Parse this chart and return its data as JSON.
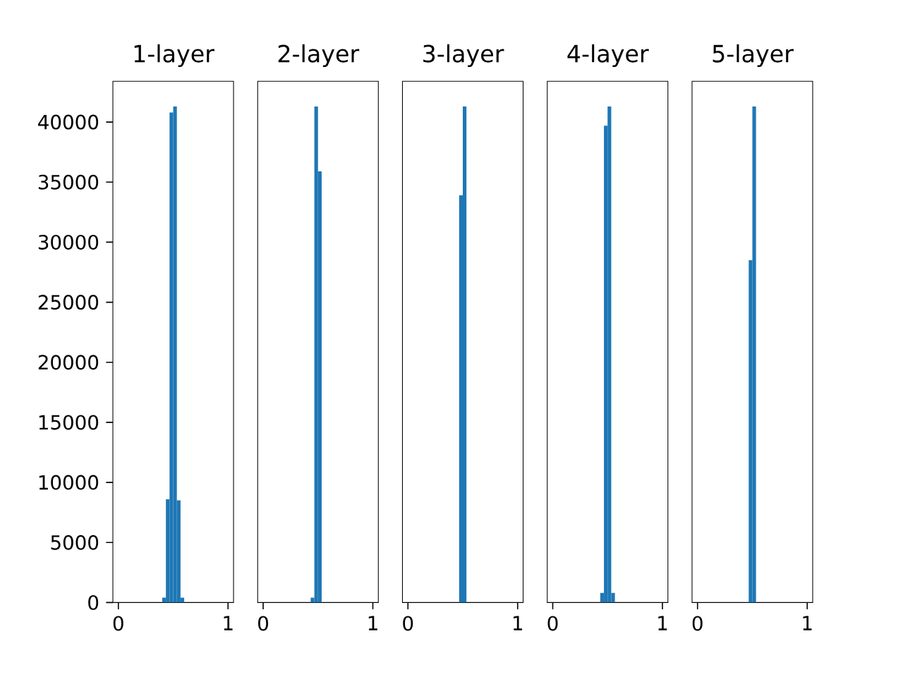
{
  "chart_data": [
    {
      "type": "histogram",
      "title": "1-layer",
      "color": "#1f77b4",
      "bins": [
        0,
        0.0333,
        0.0667,
        0.1,
        0.1333,
        0.1667,
        0.2,
        0.2333,
        0.2667,
        0.3,
        0.3333,
        0.3667,
        0.4,
        0.4333,
        0.4667,
        0.5,
        0.5333,
        0.5667,
        0.6,
        0.6333,
        0.6667,
        0.7,
        0.7333,
        0.7667,
        0.8,
        0.8333,
        0.8667,
        0.9,
        0.9333,
        0.9667,
        1
      ],
      "values": [
        0,
        0,
        0,
        0,
        0,
        0,
        0,
        0,
        0,
        0,
        0,
        0,
        400,
        8600,
        40800,
        41300,
        8500,
        400,
        0,
        0,
        0,
        0,
        0,
        0,
        0,
        0,
        0,
        0,
        0,
        0
      ],
      "xlim": [
        -0.05,
        1.05
      ],
      "xticks": [
        0,
        1
      ],
      "ylim": [
        0,
        43400
      ],
      "yticks": [
        0,
        5000,
        10000,
        15000,
        20000,
        25000,
        30000,
        35000,
        40000
      ]
    },
    {
      "type": "histogram",
      "title": "2-layer",
      "color": "#1f77b4",
      "tick_labels": "x",
      "bins": [
        0,
        0.0333,
        0.0667,
        0.1,
        0.1333,
        0.1667,
        0.2,
        0.2333,
        0.2667,
        0.3,
        0.3333,
        0.3667,
        0.4,
        0.4333,
        0.4667,
        0.5,
        0.5333,
        0.5667,
        0.6,
        0.6333,
        0.6667,
        0.7,
        0.7333,
        0.7667,
        0.8,
        0.8333,
        0.8667,
        0.9,
        0.9333,
        0.9667,
        1
      ],
      "values": [
        0,
        0,
        0,
        0,
        0,
        0,
        0,
        0,
        0,
        0,
        0,
        0,
        0,
        400,
        41300,
        35900,
        0,
        0,
        0,
        0,
        0,
        0,
        0,
        0,
        0,
        0,
        0,
        0,
        0,
        0
      ],
      "xlim": [
        -0.05,
        1.05
      ],
      "xticks": [
        0,
        1
      ],
      "ylim": [
        0,
        43400
      ],
      "yticks": [
        0,
        5000,
        10000,
        15000,
        20000,
        25000,
        30000,
        35000,
        40000
      ]
    },
    {
      "type": "histogram",
      "title": "3-layer",
      "color": "#1f77b4",
      "tick_labels": "x",
      "bins": [
        0,
        0.0333,
        0.0667,
        0.1,
        0.1333,
        0.1667,
        0.2,
        0.2333,
        0.2667,
        0.3,
        0.3333,
        0.3667,
        0.4,
        0.4333,
        0.4667,
        0.5,
        0.5333,
        0.5667,
        0.6,
        0.6333,
        0.6667,
        0.7,
        0.7333,
        0.7667,
        0.8,
        0.8333,
        0.8667,
        0.9,
        0.9333,
        0.9667,
        1
      ],
      "values": [
        0,
        0,
        0,
        0,
        0,
        0,
        0,
        0,
        0,
        0,
        0,
        0,
        0,
        0,
        33900,
        41300,
        0,
        0,
        0,
        0,
        0,
        0,
        0,
        0,
        0,
        0,
        0,
        0,
        0,
        0
      ],
      "xlim": [
        -0.05,
        1.05
      ],
      "xticks": [
        0,
        1
      ],
      "ylim": [
        0,
        43400
      ],
      "yticks": [
        0,
        5000,
        10000,
        15000,
        20000,
        25000,
        30000,
        35000,
        40000
      ]
    },
    {
      "type": "histogram",
      "title": "4-layer",
      "color": "#1f77b4",
      "tick_labels": "x",
      "bins": [
        0,
        0.0333,
        0.0667,
        0.1,
        0.1333,
        0.1667,
        0.2,
        0.2333,
        0.2667,
        0.3,
        0.3333,
        0.3667,
        0.4,
        0.4333,
        0.4667,
        0.5,
        0.5333,
        0.5667,
        0.6,
        0.6333,
        0.6667,
        0.7,
        0.7333,
        0.7667,
        0.8,
        0.8333,
        0.8667,
        0.9,
        0.9333,
        0.9667,
        1
      ],
      "values": [
        0,
        0,
        0,
        0,
        0,
        0,
        0,
        0,
        0,
        0,
        0,
        0,
        0,
        800,
        39700,
        41300,
        800,
        0,
        0,
        0,
        0,
        0,
        0,
        0,
        0,
        0,
        0,
        0,
        0,
        0
      ],
      "xlim": [
        -0.05,
        1.05
      ],
      "xticks": [
        0,
        1
      ],
      "ylim": [
        0,
        43400
      ],
      "yticks": [
        0,
        5000,
        10000,
        15000,
        20000,
        25000,
        30000,
        35000,
        40000
      ]
    },
    {
      "type": "histogram",
      "title": "5-layer",
      "color": "#1f77b4",
      "tick_labels": "x",
      "bins": [
        0,
        0.0333,
        0.0667,
        0.1,
        0.1333,
        0.1667,
        0.2,
        0.2333,
        0.2667,
        0.3,
        0.3333,
        0.3667,
        0.4,
        0.4333,
        0.4667,
        0.5,
        0.5333,
        0.5667,
        0.6,
        0.6333,
        0.6667,
        0.7,
        0.7333,
        0.7667,
        0.8,
        0.8333,
        0.8667,
        0.9,
        0.9333,
        0.9667,
        1
      ],
      "values": [
        0,
        0,
        0,
        0,
        0,
        0,
        0,
        0,
        0,
        0,
        0,
        0,
        0,
        0,
        28500,
        41300,
        0,
        0,
        0,
        0,
        0,
        0,
        0,
        0,
        0,
        0,
        0,
        0,
        0,
        0
      ],
      "xlim": [
        -0.05,
        1.05
      ],
      "xticks": [
        0,
        1
      ],
      "ylim": [
        0,
        43400
      ],
      "yticks": [
        0,
        5000,
        10000,
        15000,
        20000,
        25000,
        30000,
        35000,
        40000
      ]
    }
  ]
}
